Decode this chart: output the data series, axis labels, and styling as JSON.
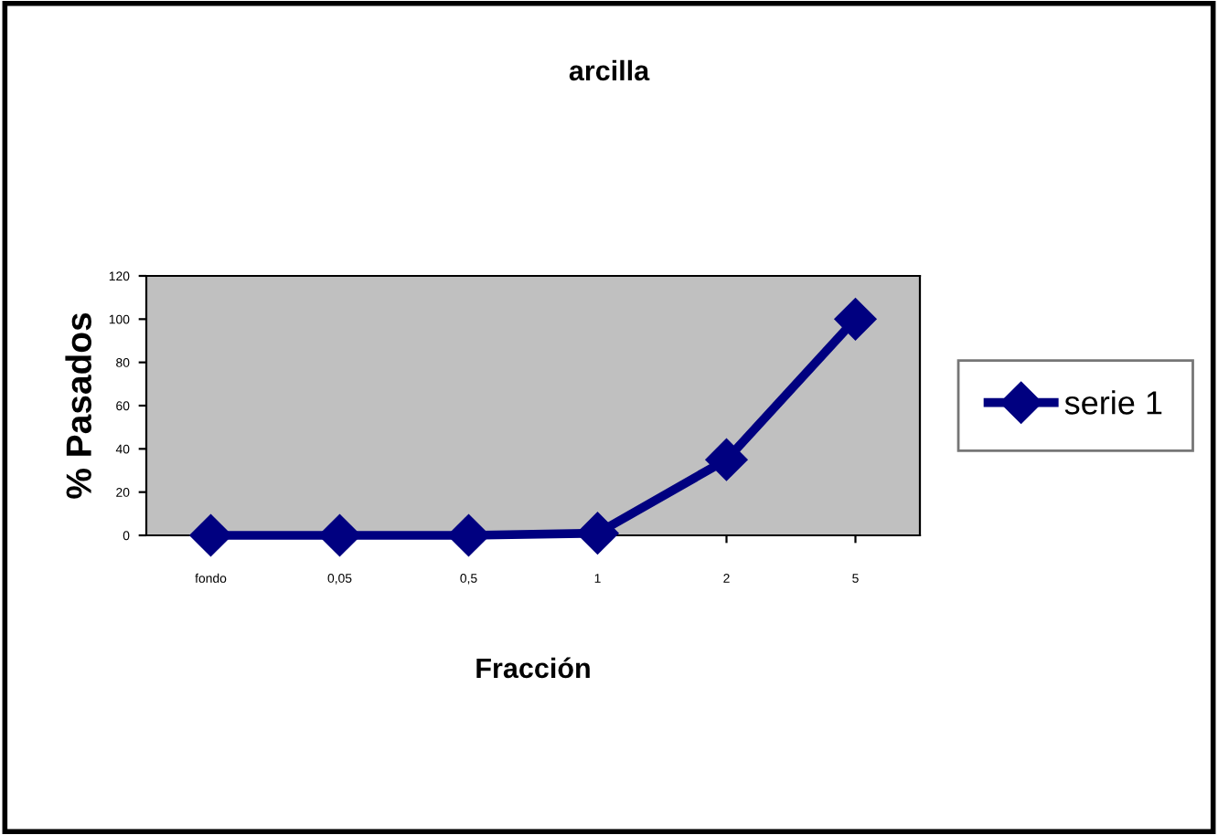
{
  "chart_data": {
    "type": "line",
    "title": "arcilla",
    "xlabel": "Fracción",
    "ylabel": "% Pasados",
    "categories": [
      "fondo",
      "0,05",
      "0,5",
      "1",
      "2",
      "5"
    ],
    "series": [
      {
        "name": "serie 1",
        "color": "#000080",
        "values": [
          0,
          0,
          0,
          1,
          35,
          100
        ]
      }
    ],
    "ylim": [
      0,
      120
    ],
    "yticks": [
      0,
      20,
      40,
      60,
      80,
      100,
      120
    ],
    "grid": false,
    "legend": "right",
    "marker": "diamond",
    "line_style": "solid"
  }
}
